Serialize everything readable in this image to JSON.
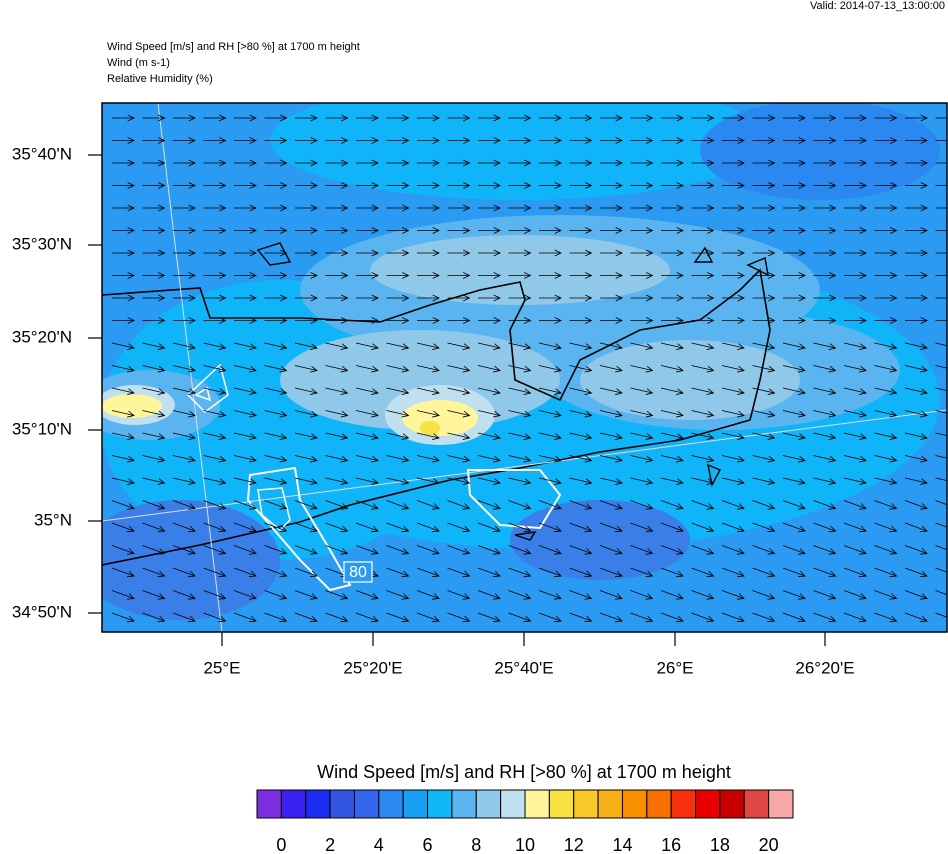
{
  "header": {
    "valid": "Valid: 2014-07-13_13:00:00",
    "lines": [
      "Wind Speed [m/s] and RH [>80 %] at 1700 m height",
      "Wind   (m s-1)",
      "Relative Humidity   (%)"
    ]
  },
  "map": {
    "lat_labels": [
      "35°40'N",
      "35°30'N",
      "35°20'N",
      "35°10'N",
      "35°N",
      "34°50'N"
    ],
    "lon_labels": [
      "25°E",
      "25°20'E",
      "25°40'E",
      "26°E",
      "26°20'E"
    ],
    "contour_label": "80"
  },
  "colorbar": {
    "title": "Wind Speed [m/s] and RH [>80 %] at 1700 m height",
    "colors": [
      "#7a2ee0",
      "#3a22f0",
      "#1a2cf0",
      "#3355e0",
      "#3366ee",
      "#2a88f0",
      "#18a0f5",
      "#10b8f8",
      "#5ab4f0",
      "#90c8ea",
      "#c0e0f0",
      "#fff59a",
      "#f8e040",
      "#f8c828",
      "#f8b018",
      "#f89000",
      "#f87000",
      "#f83010",
      "#e80000",
      "#c80000",
      "#e04848",
      "#f8a8a8"
    ],
    "labels": [
      0,
      2,
      4,
      6,
      8,
      10,
      12,
      14,
      16,
      18,
      20
    ]
  }
}
